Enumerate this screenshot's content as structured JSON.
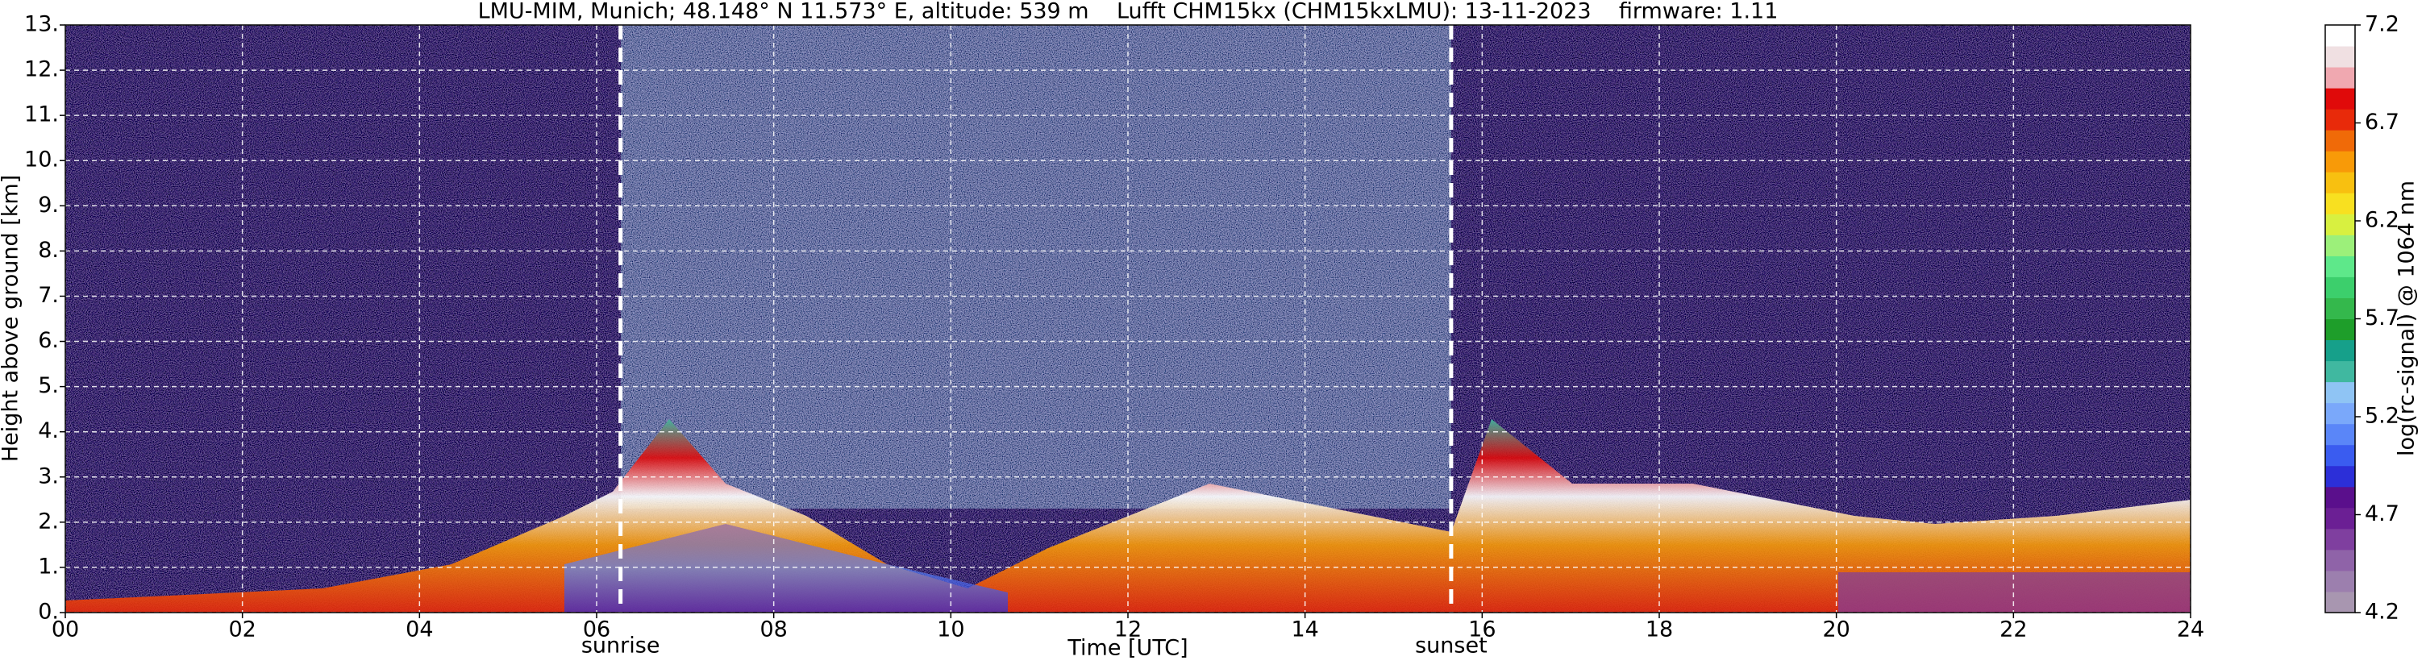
{
  "chart_data": {
    "type": "heatmap",
    "title": "LMU-MIM, Munich; 48.148° N 11.573° E, altitude: 539 m    Lufft CHM15kx (CHM15kxLMU): 13-11-2023    firmware: 1.11",
    "x_label": "Time [UTC]",
    "y_label": "Height above ground [km]",
    "xlim": [
      0,
      24
    ],
    "ylim": [
      0,
      13
    ],
    "xticks": [
      {
        "value": 0,
        "label": "00"
      },
      {
        "value": 2,
        "label": "02"
      },
      {
        "value": 4,
        "label": "04"
      },
      {
        "value": 6,
        "label": "06"
      },
      {
        "value": 8,
        "label": "08"
      },
      {
        "value": 10,
        "label": "10"
      },
      {
        "value": 12,
        "label": "12"
      },
      {
        "value": 14,
        "label": "14"
      },
      {
        "value": 16,
        "label": "16"
      },
      {
        "value": 18,
        "label": "18"
      },
      {
        "value": 20,
        "label": "20"
      },
      {
        "value": 22,
        "label": "22"
      },
      {
        "value": 24,
        "label": "24"
      }
    ],
    "yticks": [
      {
        "value": 0,
        "label": "0."
      },
      {
        "value": 1,
        "label": "1."
      },
      {
        "value": 2,
        "label": "2."
      },
      {
        "value": 3,
        "label": "3."
      },
      {
        "value": 4,
        "label": "4."
      },
      {
        "value": 5,
        "label": "5."
      },
      {
        "value": 6,
        "label": "6."
      },
      {
        "value": 7,
        "label": "7."
      },
      {
        "value": 8,
        "label": "8."
      },
      {
        "value": 9,
        "label": "9."
      },
      {
        "value": 10,
        "label": "10."
      },
      {
        "value": 11,
        "label": "11."
      },
      {
        "value": 12,
        "label": "12."
      },
      {
        "value": 13,
        "label": "13."
      }
    ],
    "grid": true,
    "markers": [
      {
        "label": "sunrise",
        "x": 6.27
      },
      {
        "label": "sunset",
        "x": 15.65
      }
    ],
    "colorbar": {
      "label": "log(rc-signal) @ 1064 nm",
      "lim": [
        4.2,
        7.2
      ],
      "ticks": [
        4.2,
        4.7,
        5.2,
        5.7,
        6.2,
        6.7,
        7.2
      ],
      "colors": [
        "#a896b0",
        "#9c7fae",
        "#8f63a8",
        "#7f3f9f",
        "#6b1f94",
        "#5a0f8c",
        "#2c2fd8",
        "#3a5cf0",
        "#5a86f8",
        "#7aa8fa",
        "#8fc4f4",
        "#40b8a0",
        "#16a08a",
        "#1e9e2a",
        "#34b84c",
        "#3ccf6c",
        "#5ee88a",
        "#9cf07a",
        "#d8f040",
        "#f8e020",
        "#f8c010",
        "#f89a08",
        "#f06a08",
        "#e82a0a",
        "#e00a0a",
        "#f0a8b0",
        "#f0e0e2",
        "#ffffff"
      ]
    }
  }
}
